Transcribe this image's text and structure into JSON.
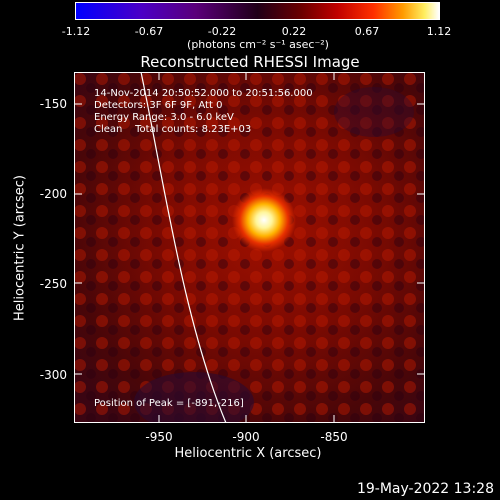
{
  "colorbar": {
    "ticks": [
      "-1.12",
      "-0.67",
      "-0.22",
      "0.22",
      "0.67",
      "1.12"
    ],
    "units": "(photons cm⁻² s⁻¹ asec⁻²)"
  },
  "title": "Reconstructed RHESSI Image",
  "annotations": {
    "time_range": "14-Nov-2014 20:50:52.000 to 20:51:56.000",
    "detectors": "Detectors: 3F 6F 9F, Att 0",
    "energy": "Energy Range: 3.0 - 6.0 keV",
    "clean": "Clean    Total counts: 8.23E+03",
    "peak": "Position of Peak = [-891,-216]"
  },
  "axes": {
    "xlabel": "Heliocentric X (arcsec)",
    "ylabel": "Heliocentric Y (arcsec)",
    "xticks": [
      "-950",
      "-900",
      "-850"
    ],
    "yticks": [
      "-150",
      "-200",
      "-250",
      "-300"
    ]
  },
  "footer": {
    "datestamp": "19-May-2022 13:28"
  },
  "image": {
    "peak_x": -891,
    "peak_y": -216,
    "scale": "heat colormap"
  }
}
